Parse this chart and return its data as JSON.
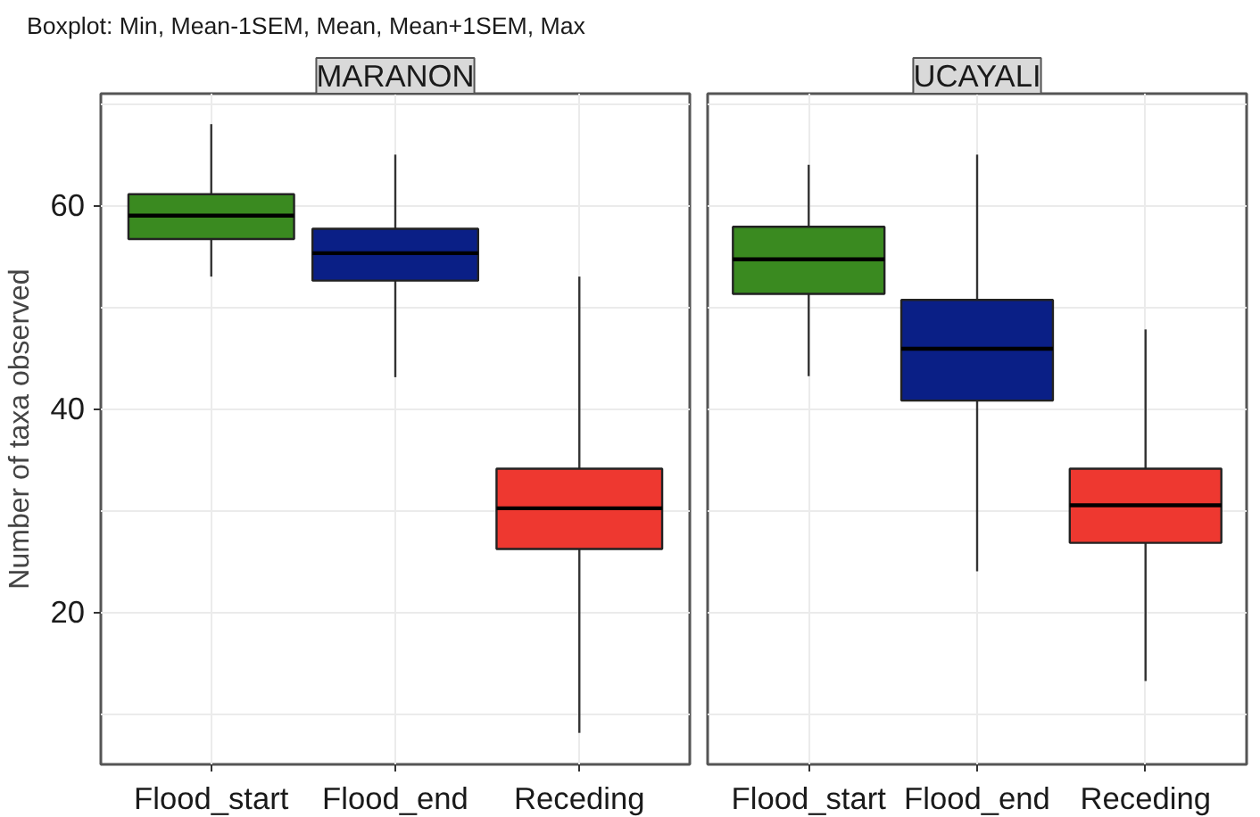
{
  "chart_data": [
    {
      "type": "box",
      "title": "MARANON",
      "ylabel": "Number of taxa observed",
      "annotations": [
        "Boxplot: Min, Mean-1SEM, Mean, Mean+1SEM, Max"
      ],
      "categories": [
        "Flood_start",
        "Flood_end",
        "Receding"
      ],
      "colors": [
        "#3a8a20",
        "#0a1f86",
        "#ee3830"
      ],
      "boxes": [
        {
          "low": 53,
          "q1": 56.7,
          "median": 59,
          "q3": 61.1,
          "high": 68
        },
        {
          "low": 43.1,
          "q1": 52.6,
          "median": 55.3,
          "q3": 57.7,
          "high": 65
        },
        {
          "low": 8.1,
          "q1": 26.2,
          "median": 30.2,
          "q3": 34.1,
          "high": 53
        }
      ],
      "ylim": [
        5,
        71
      ],
      "yticks": [
        {
          "value": 10,
          "label": null
        },
        20,
        {
          "value": 30,
          "label": null
        },
        40,
        {
          "value": 50,
          "label": null
        },
        60,
        {
          "value": 70,
          "label": null
        }
      ],
      "grid": true
    },
    {
      "type": "box",
      "title": "UCAYALI",
      "categories": [
        "Flood_start",
        "Flood_end",
        "Receding"
      ],
      "colors": [
        "#3a8a20",
        "#0a1f86",
        "#ee3830"
      ],
      "boxes": [
        {
          "low": 43.2,
          "q1": 51.3,
          "median": 54.7,
          "q3": 57.9,
          "high": 64
        },
        {
          "low": 24,
          "q1": 40.8,
          "median": 45.9,
          "q3": 50.7,
          "high": 65
        },
        {
          "low": 13.2,
          "q1": 26.8,
          "median": 30.5,
          "q3": 34.1,
          "high": 47.8
        }
      ],
      "ylim": [
        5,
        71
      ],
      "yticks": [
        {
          "value": 10,
          "label": null
        },
        20,
        {
          "value": 30,
          "label": null
        },
        40,
        {
          "value": 50,
          "label": null
        },
        60,
        {
          "value": 70,
          "label": null
        }
      ],
      "grid": true,
      "tick_labels": "x"
    }
  ]
}
